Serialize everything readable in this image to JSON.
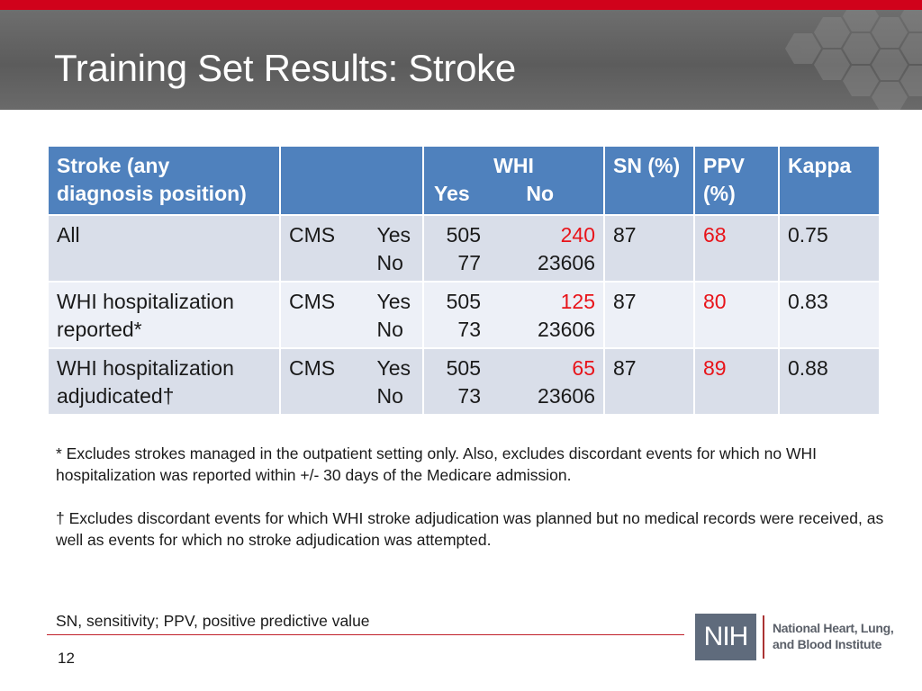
{
  "slide": {
    "title": "Training Set Results:  Stroke",
    "page_number": "12"
  },
  "table": {
    "header": {
      "col1": "Stroke (any diagnosis position)",
      "col2": "",
      "whi": "WHI",
      "yes": "Yes",
      "no": "No",
      "sn": "SN (%)",
      "ppv": "PPV (%)",
      "kappa": "Kappa"
    },
    "rows": [
      {
        "label": "All",
        "source": "CMS",
        "yes": "Yes",
        "no": "No",
        "yes_yes": "505",
        "yes_no": "240",
        "no_yes": "77",
        "no_no": "23606",
        "sn": "87",
        "ppv": "68",
        "kappa": "0.75"
      },
      {
        "label": "WHI hospitalization reported*",
        "source": "CMS",
        "yes": "Yes",
        "no": "No",
        "yes_yes": "505",
        "yes_no": "125",
        "no_yes": "73",
        "no_no": "23606",
        "sn": "87",
        "ppv": "80",
        "kappa": "0.83"
      },
      {
        "label": "WHI hospitalization adjudicated†",
        "source": "CMS",
        "yes": "Yes",
        "no": "No",
        "yes_yes": "505",
        "yes_no": "65",
        "no_yes": "73",
        "no_no": "23606",
        "sn": "87",
        "ppv": "89",
        "kappa": "0.88"
      }
    ]
  },
  "notes": {
    "asterisk": "* Excludes strokes managed in the outpatient setting only.  Also, excludes discordant events for which no WHI hospitalization was reported within +/- 30 days of the Medicare admission.",
    "dagger": "† Excludes discordant events for which WHI stroke adjudication was planned but no medical records were received, as well as events for which no stroke adjudication was attempted.",
    "abbrev": "SN, sensitivity; PPV, positive predictive value"
  },
  "logo": {
    "abbr": "NIH",
    "name_line1": "National Heart, Lung,",
    "name_line2": "and Blood Institute"
  },
  "colors": {
    "accent_red": "#d0021b",
    "header_blue": "#4f81bd",
    "value_red": "#e8141a"
  }
}
